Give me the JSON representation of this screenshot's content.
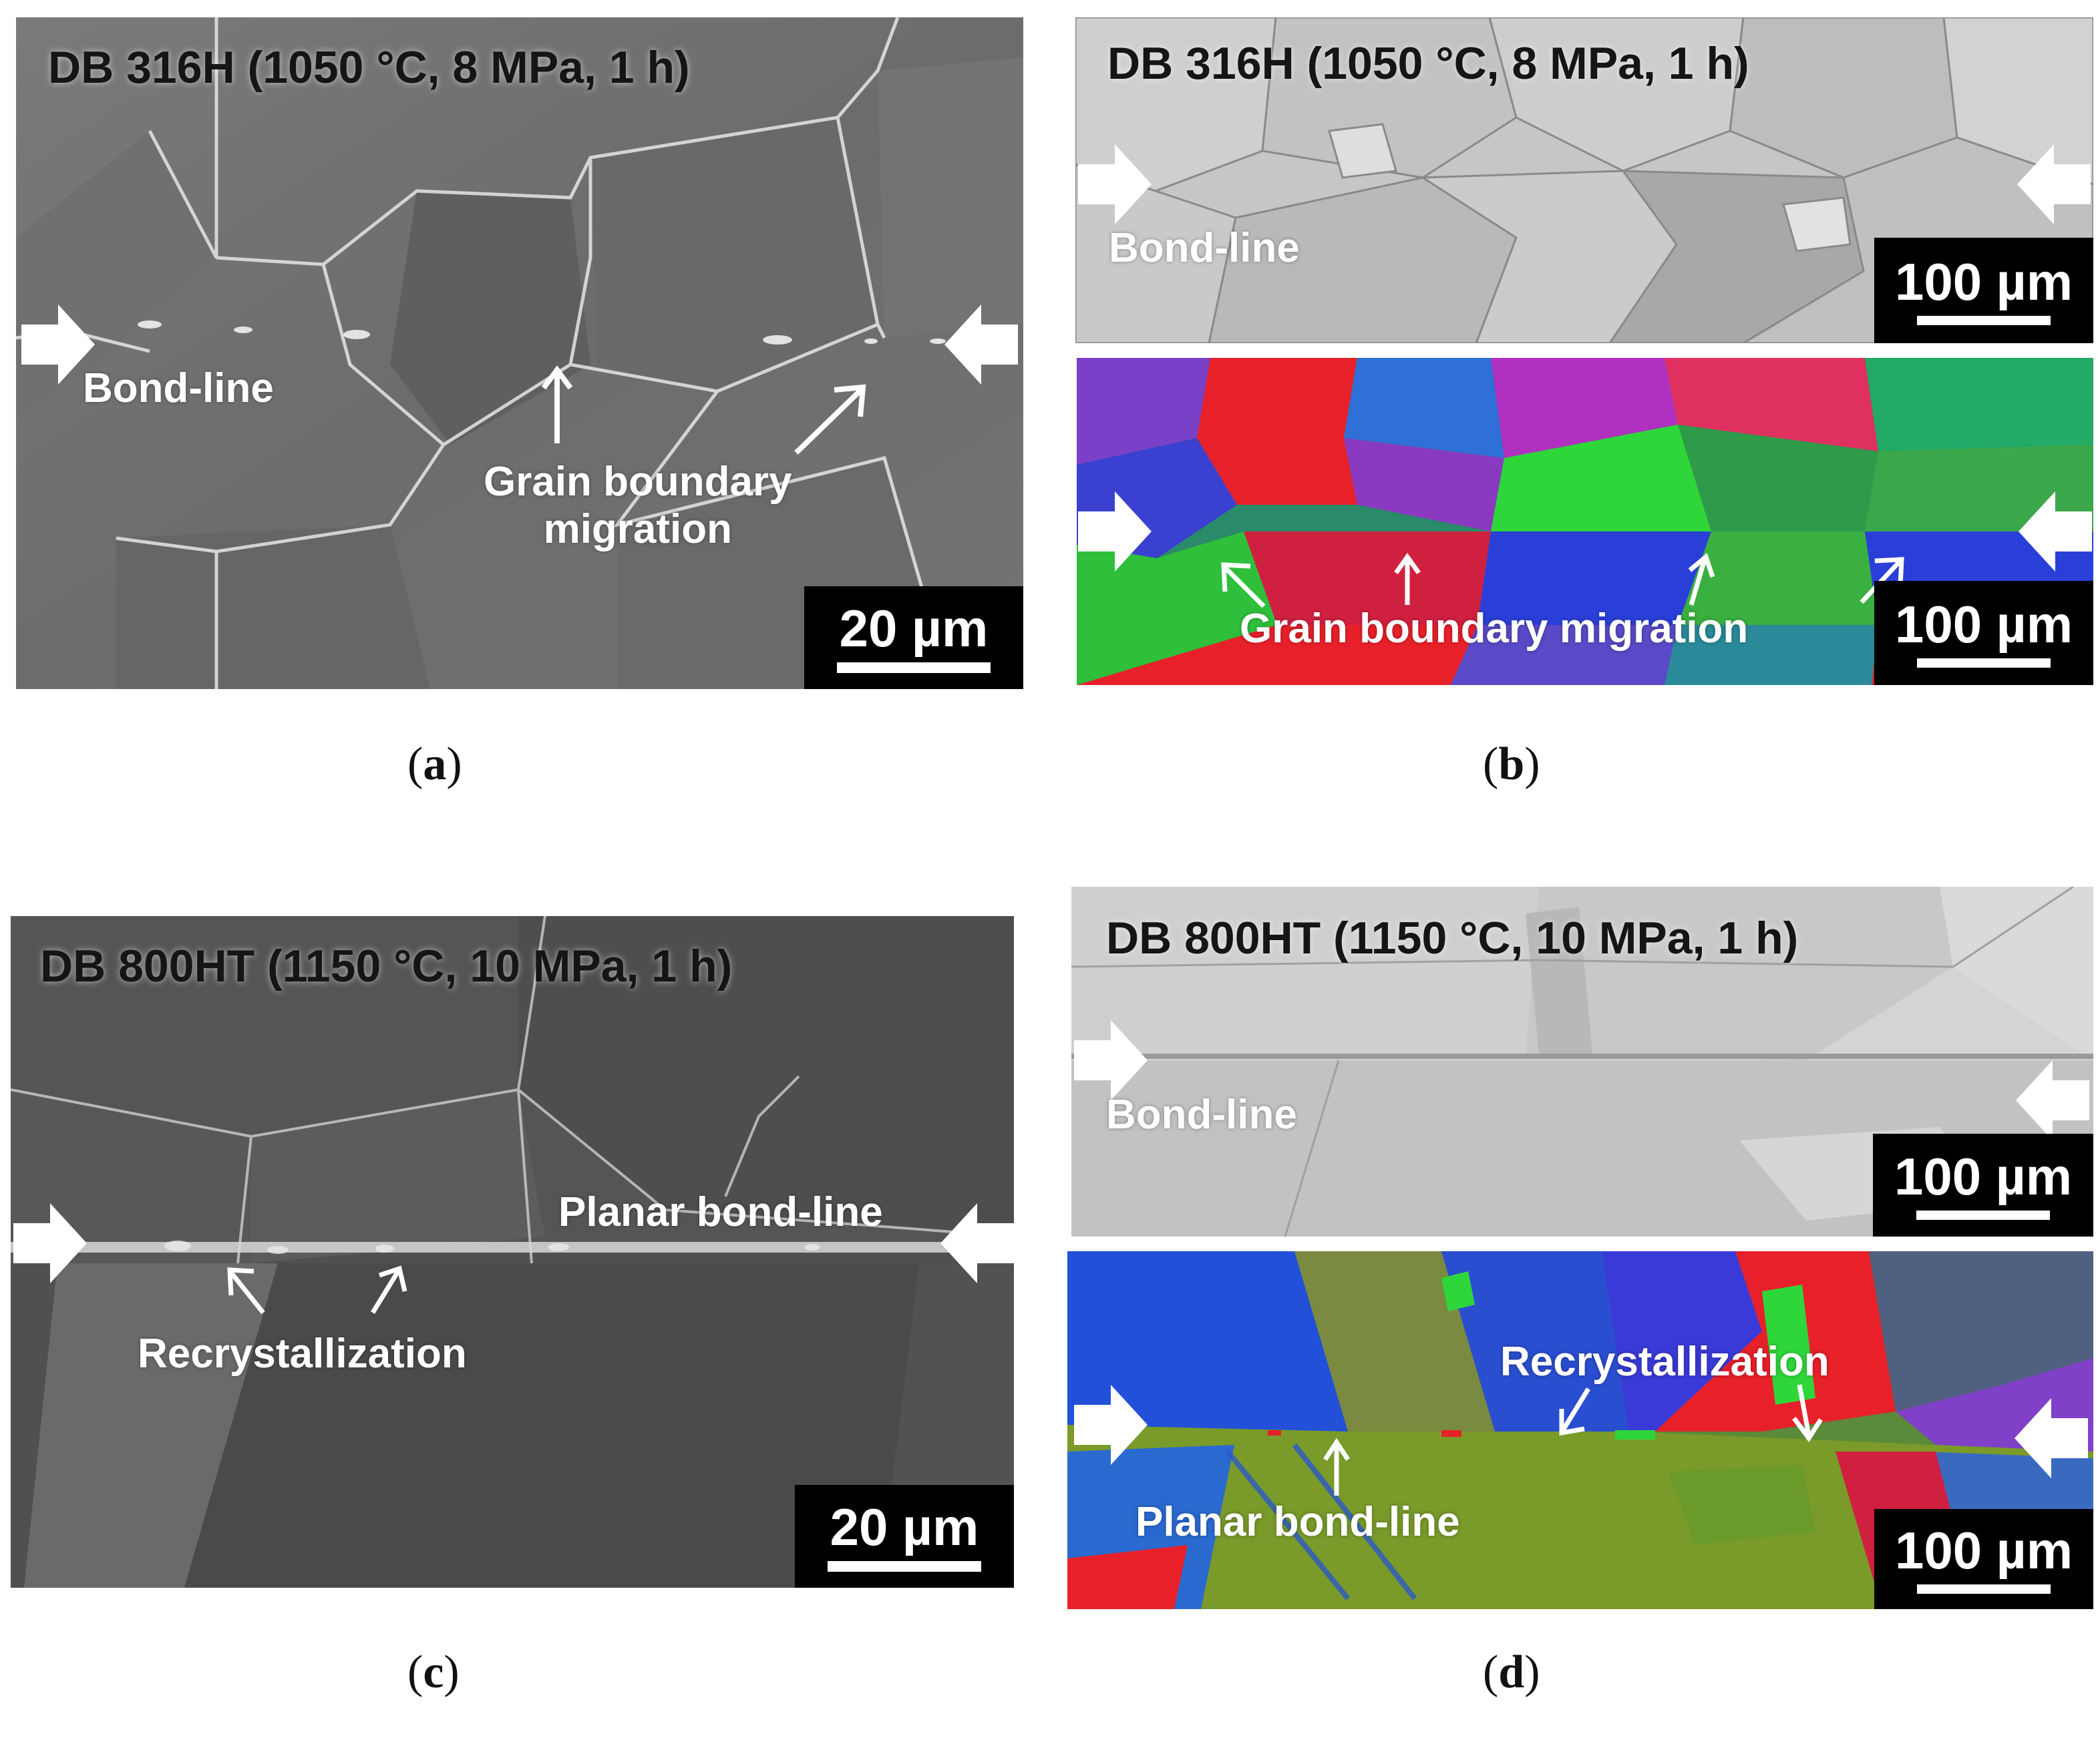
{
  "panels": {
    "a": {
      "caption_letter": "a",
      "title": "DB 316H (1050 °C, 8 MPa, 1 h)",
      "bond_line_label": "Bond-line",
      "annotation": [
        "Grain boundary",
        "migration"
      ],
      "scale_bar": "20 µm"
    },
    "b": {
      "caption_letter": "b",
      "title": "DB 316H (1050 °C, 8 MPa, 1 h)",
      "bond_line_label": "Bond-line",
      "scale_bar_top": "100 µm",
      "annotation": "Grain boundary migration",
      "scale_bar_bottom": "100 µm"
    },
    "c": {
      "caption_letter": "c",
      "title": "DB 800HT (1150 °C, 10 MPa, 1 h)",
      "planar_label": "Planar bond-line",
      "recryst_label": "Recrystallization",
      "scale_bar": "20 µm"
    },
    "d": {
      "caption_letter": "d",
      "title": "DB 800HT (1150 °C, 10 MPa, 1 h)",
      "bond_line_label": "Bond-line",
      "scale_bar_top": "100 µm",
      "recryst_label": "Recrystallization",
      "planar_label": "Planar bond-line",
      "scale_bar_bottom": "100 µm"
    }
  },
  "colors": {
    "sem_gray": "#6e6e6e",
    "bse_light": "#c9c9c9",
    "ebsd_red": "#e8202a",
    "ebsd_green": "#2fbf3a",
    "ebsd_blue": "#2a3fd8"
  }
}
